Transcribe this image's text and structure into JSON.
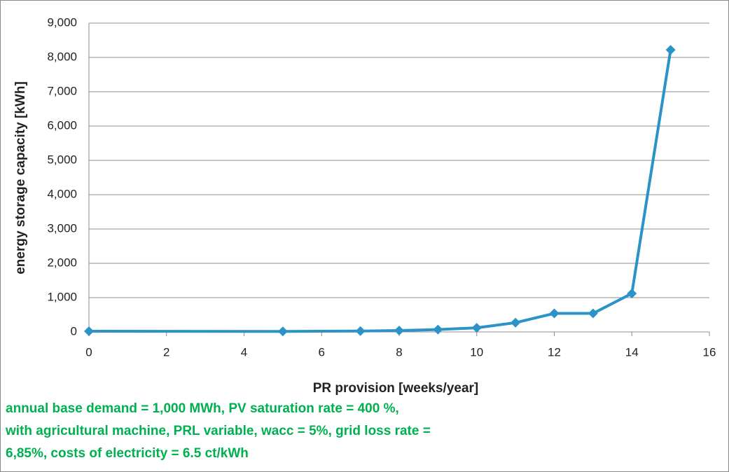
{
  "chart_data": {
    "type": "line",
    "xlabel": "PR provision [weeks/year]",
    "ylabel": "energy storage capacity [kWh]",
    "annotation": [
      "annual base demand = 1,000 MWh, PV saturation rate = 400 %,",
      "with agricultural machine, PRL variable, wacc = 5%, grid loss rate =",
      "6,85%, costs of electricity = 6.5 ct/kWh"
    ],
    "x": [
      0,
      5,
      7,
      8,
      9,
      10,
      11,
      12,
      13,
      14,
      15
    ],
    "series": [
      {
        "color": "#2b93c8",
        "values": [
          20,
          15,
          25,
          40,
          70,
          120,
          270,
          540,
          540,
          1120,
          8220
        ]
      }
    ],
    "xlim": [
      0,
      16
    ],
    "xticks": [
      0,
      2,
      4,
      6,
      8,
      10,
      12,
      14,
      16
    ],
    "ylim": [
      0,
      9000
    ],
    "yticks": [
      0,
      {
        "value": 1000,
        "label": "1,000"
      },
      {
        "value": 2000,
        "label": "2,000"
      },
      {
        "value": 3000,
        "label": "3,000"
      },
      {
        "value": 4000,
        "label": "4,000"
      },
      {
        "value": 5000,
        "label": "5,000"
      },
      {
        "value": 6000,
        "label": "6,000"
      },
      {
        "value": 7000,
        "label": "7,000"
      },
      {
        "value": 8000,
        "label": "8,000"
      },
      {
        "value": 9000,
        "label": "9,000"
      }
    ],
    "grid": true
  }
}
